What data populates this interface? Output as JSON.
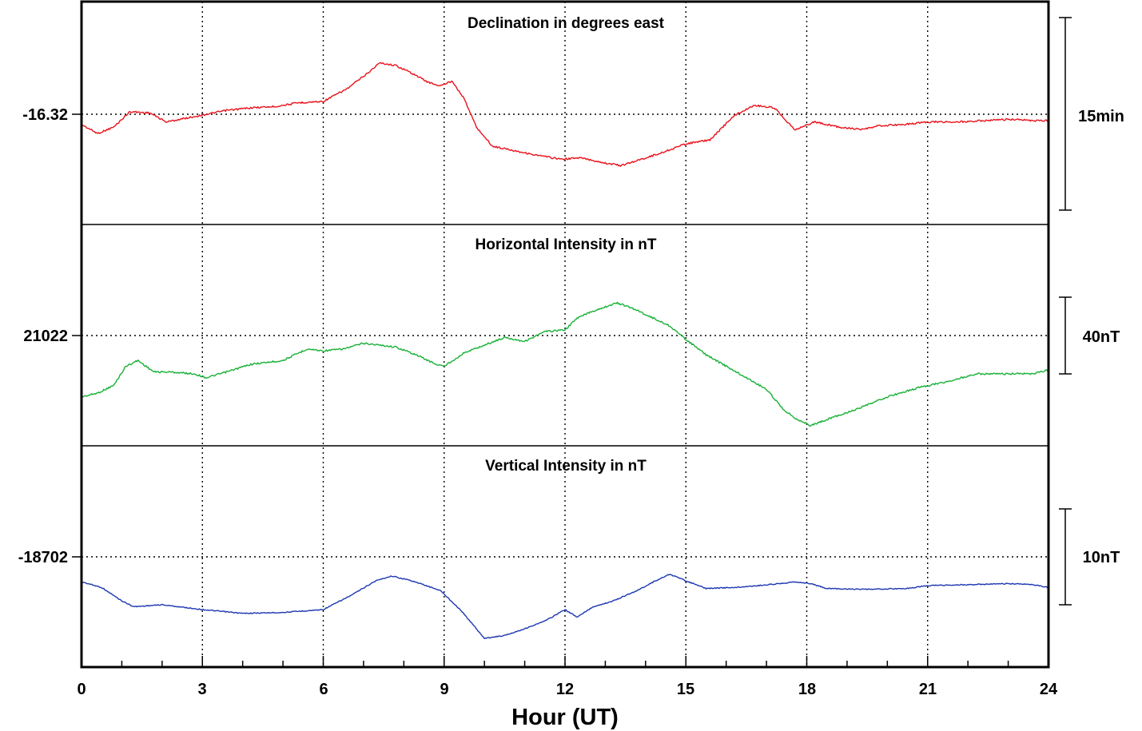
{
  "chart_data": {
    "type": "line",
    "xlabel": "Hour (UT)",
    "xlim": [
      0,
      24
    ],
    "xticks": [
      0,
      3,
      6,
      9,
      12,
      15,
      18,
      21,
      24
    ],
    "tick_labels": [
      "0",
      "3",
      "6",
      "9",
      "12",
      "15",
      "18",
      "21",
      "24"
    ],
    "grid": true,
    "panels": [
      {
        "title": "Declination in degrees east",
        "reference_label": "-16.32",
        "scale_label": "15min",
        "color": "#e8121b",
        "x": [
          0,
          0.4,
          0.8,
          1.2,
          1.7,
          2.1,
          2.6,
          3.1,
          3.6,
          4.2,
          4.8,
          5.4,
          6.0,
          6.6,
          7.1,
          7.4,
          7.8,
          8.2,
          8.6,
          8.9,
          9.2,
          9.5,
          9.8,
          10.2,
          10.7,
          11.3,
          11.9,
          12.4,
          13.0,
          13.4,
          13.8,
          14.4,
          15.0,
          15.6,
          16.2,
          16.7,
          17.2,
          17.7,
          18.2,
          18.8,
          19.4,
          19.8,
          20.4,
          21.0,
          21.7,
          22.4,
          23.0,
          23.6,
          24.0
        ],
        "values": [
          -0.8,
          -1.5,
          -1.0,
          0.2,
          0.1,
          -0.6,
          -0.3,
          0.0,
          0.3,
          0.5,
          0.6,
          0.9,
          1.0,
          2.0,
          3.2,
          4.0,
          3.8,
          3.2,
          2.5,
          2.2,
          2.6,
          1.2,
          -1.0,
          -2.5,
          -2.8,
          -3.2,
          -3.5,
          -3.4,
          -3.8,
          -4.0,
          -3.6,
          -3.0,
          -2.3,
          -2.0,
          -0.1,
          0.7,
          0.5,
          -1.2,
          -0.6,
          -1.0,
          -1.2,
          -0.9,
          -0.8,
          -0.6,
          -0.6,
          -0.5,
          -0.4,
          -0.5,
          -0.5
        ]
      },
      {
        "title": "Horizontal Intensity in nT",
        "reference_label": "21022",
        "scale_label": "40nT",
        "color": "#18b136",
        "x": [
          0,
          0.4,
          0.8,
          1.1,
          1.4,
          1.8,
          2.2,
          2.8,
          3.1,
          3.6,
          4.2,
          5.0,
          5.6,
          6.0,
          6.5,
          7.0,
          7.4,
          7.8,
          8.3,
          8.8,
          9.0,
          9.5,
          10.0,
          10.5,
          11.0,
          11.5,
          12.0,
          12.3,
          12.6,
          13.0,
          13.3,
          13.7,
          14.2,
          14.6,
          15.0,
          15.5,
          16.0,
          16.5,
          17.0,
          17.4,
          17.7,
          18.1,
          18.6,
          19.3,
          20.0,
          20.8,
          21.5,
          22.2,
          23.0,
          23.6,
          24.0
        ],
        "values": [
          -32,
          -30,
          -26,
          -16,
          -13,
          -19,
          -19,
          -20,
          -22,
          -19,
          -15,
          -13,
          -7,
          -8,
          -7,
          -4,
          -5,
          -6,
          -10,
          -15,
          -16,
          -9,
          -5,
          -1,
          -3,
          2,
          3,
          9,
          12,
          15,
          17,
          14,
          9,
          5,
          -2,
          -10,
          -16,
          -22,
          -28,
          -38,
          -43,
          -47,
          -43,
          -38,
          -32,
          -27,
          -24,
          -20,
          -20,
          -20,
          -18
        ]
      },
      {
        "title": "Vertical Intensity in nT",
        "reference_label": "-18702",
        "scale_label": "10nT",
        "color": "#1c37b0",
        "x": [
          0,
          0.5,
          1.0,
          1.3,
          2.0,
          3.0,
          4.0,
          5.0,
          6.0,
          6.7,
          7.3,
          7.7,
          8.2,
          8.9,
          9.4,
          9.8,
          10.0,
          10.5,
          11.0,
          11.5,
          12.0,
          12.3,
          12.7,
          13.2,
          13.8,
          14.2,
          14.6,
          15.0,
          15.5,
          16.2,
          16.8,
          17.3,
          17.7,
          18.1,
          18.5,
          19.5,
          20.5,
          21.0,
          22.0,
          23.0,
          23.6,
          24.0
        ],
        "values": [
          -2.6,
          -3.2,
          -4.6,
          -5.2,
          -5.0,
          -5.5,
          -5.9,
          -5.8,
          -5.5,
          -4.0,
          -2.5,
          -2.0,
          -2.5,
          -3.5,
          -5.5,
          -7.5,
          -8.5,
          -8.2,
          -7.5,
          -6.7,
          -5.5,
          -6.3,
          -5.2,
          -4.6,
          -3.5,
          -2.6,
          -1.8,
          -2.5,
          -3.3,
          -3.2,
          -3.0,
          -2.8,
          -2.6,
          -2.8,
          -3.3,
          -3.4,
          -3.3,
          -3.0,
          -2.9,
          -2.8,
          -2.9,
          -3.2
        ]
      }
    ]
  }
}
